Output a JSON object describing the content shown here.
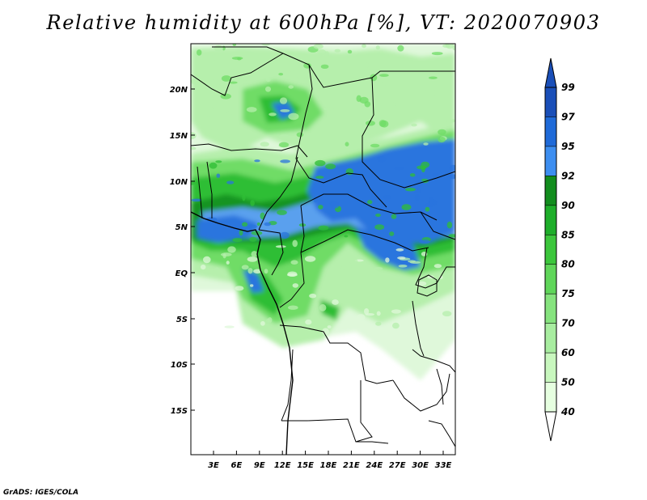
{
  "title": "Relative humidity at 600hPa [%], VT: 2020070903",
  "credit": "GrADS: IGES/COLA",
  "map": {
    "lat_ticks": [
      "20N",
      "15N",
      "10N",
      "5N",
      "EQ",
      "5S",
      "10S",
      "15S"
    ],
    "lon_ticks": [
      "3E",
      "6E",
      "9E",
      "12E",
      "15E",
      "18E",
      "21E",
      "24E",
      "27E",
      "30E",
      "33E"
    ]
  },
  "colorbar": {
    "levels": [
      "40",
      "50",
      "60",
      "70",
      "75",
      "80",
      "85",
      "90",
      "92",
      "95",
      "97",
      "99"
    ],
    "colors": [
      "#ffffff",
      "#e6ffe0",
      "#c8f7be",
      "#a8eda0",
      "#86e37e",
      "#60d65a",
      "#3cc63c",
      "#1eae2a",
      "#128d1e",
      "#3d8ef0",
      "#1f6ad8",
      "#1a4fb8"
    ]
  },
  "field_colors": {
    "pale": "#dff8da",
    "light": "#b6efac",
    "mid": "#6fdc66",
    "green": "#2fbe35",
    "dark": "#139424",
    "blue": "#2a74de",
    "blue_light": "#5aa0ee"
  }
}
